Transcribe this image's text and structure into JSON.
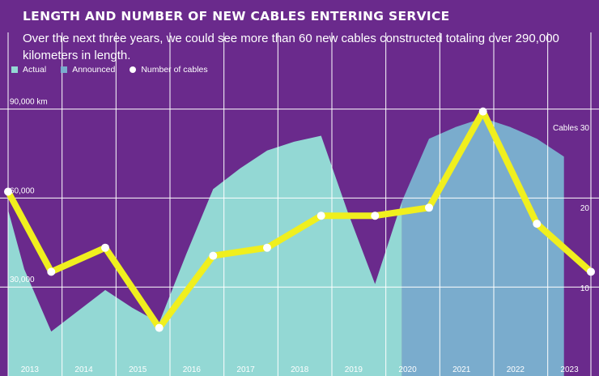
{
  "chart_data": {
    "type": "area",
    "title": "LENGTH AND NUMBER OF NEW CABLES ENTERING SERVICE",
    "subtitle": "Over the next three years, we could see more than 60 new cables constructed totaling over 290,000 kilometers in length.",
    "categories": [
      "2013",
      "2014",
      "2015",
      "2016",
      "2017",
      "2018",
      "2019",
      "2020",
      "2021",
      "2022",
      "2023"
    ],
    "series": [
      {
        "name": "Actual",
        "kind": "area",
        "axis": "left",
        "color": "#93d8d4",
        "x": [
          2012.85,
          2013.15,
          2013.65,
          2014.15,
          2014.65,
          2015.15,
          2015.65,
          2016.15,
          2016.65,
          2017.15,
          2017.65,
          2018.15,
          2018.65,
          2019.15,
          2019.65,
          2020.15
        ],
        "values": [
          56000,
          36000,
          15000,
          22000,
          29000,
          23000,
          18000,
          41000,
          63000,
          70000,
          76000,
          79000,
          81000,
          55000,
          31000,
          59000
        ]
      },
      {
        "name": "Announced",
        "kind": "area",
        "axis": "left",
        "color": "#7aaccd",
        "x": [
          2020.15,
          2020.65,
          2021.15,
          2021.65,
          2022.15,
          2022.65,
          2023.15
        ],
        "values": [
          59000,
          80000,
          84000,
          87000,
          84000,
          80000,
          74000
        ]
      },
      {
        "name": "Number of cables",
        "kind": "line",
        "axis": "right",
        "color": "#f0ef1e",
        "x": [
          2012.85,
          2013.65,
          2014.65,
          2015.65,
          2016.65,
          2017.65,
          2018.65,
          2019.65,
          2020.65,
          2021.65,
          2022.65,
          2023.65
        ],
        "values": [
          23,
          13,
          16,
          6,
          15,
          16,
          20,
          20,
          21,
          33,
          19,
          13
        ]
      }
    ],
    "y_left": {
      "ticks": [
        30000,
        60000,
        90000
      ],
      "tick_labels": [
        "30,000",
        "60,000",
        "90,000 km"
      ],
      "range": [
        0,
        100000
      ]
    },
    "y_right": {
      "ticks": [
        10,
        20,
        30
      ],
      "tick_labels": [
        "10",
        "20",
        "Cables 30"
      ],
      "range": [
        0,
        37
      ]
    },
    "x_range": [
      2012.85,
      2023.65
    ],
    "grid": true,
    "legend": "top-left",
    "background": "#6a2a8c"
  }
}
